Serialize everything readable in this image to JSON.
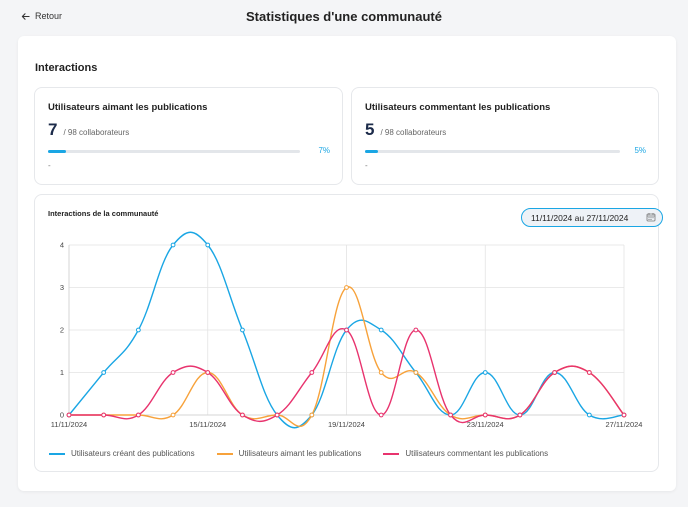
{
  "header": {
    "back_label": "Retour",
    "title": "Statistiques d'une communauté"
  },
  "section": {
    "title": "Interactions"
  },
  "cards": [
    {
      "title": "Utilisateurs aimant les publications",
      "count": "7",
      "total": "/ 98 collaborateurs",
      "percent_label": "7%",
      "percent": 7,
      "note": "-"
    },
    {
      "title": "Utilisateurs commentant les publications",
      "count": "5",
      "total": "/ 98 collaborateurs",
      "percent_label": "5%",
      "percent": 5,
      "note": "-"
    }
  ],
  "chart_card": {
    "title": "Interactions de la communauté",
    "date_range": "11/11/2024 au 27/11/2024"
  },
  "colors": {
    "accent": "#1aa6e4",
    "series_created": "#1aa6e4",
    "series_liked": "#f7a23b",
    "series_commented": "#e8336e"
  },
  "chart_data": {
    "type": "line",
    "title": "Interactions de la communauté",
    "xlabel": "",
    "ylabel": "",
    "x": [
      "11/11/2024",
      "12/11/2024",
      "13/11/2024",
      "14/11/2024",
      "15/11/2024",
      "16/11/2024",
      "17/11/2024",
      "18/11/2024",
      "19/11/2024",
      "20/11/2024",
      "21/11/2024",
      "22/11/2024",
      "23/11/2024",
      "24/11/2024",
      "25/11/2024",
      "26/11/2024",
      "27/11/2024"
    ],
    "x_tick_labels": [
      "11/11/2024",
      "15/11/2024",
      "19/11/2024",
      "23/11/2024",
      "27/11/2024"
    ],
    "x_tick_indices": [
      0,
      4,
      8,
      12,
      16
    ],
    "ylim": [
      0,
      4
    ],
    "y_ticks": [
      0,
      1,
      2,
      3,
      4
    ],
    "grid": true,
    "legend_position": "bottom-left",
    "series": [
      {
        "name": "Utilisateurs créant des publications",
        "color": "#1aa6e4",
        "values": [
          0,
          1,
          2,
          4,
          4,
          2,
          0,
          0,
          2,
          2,
          1,
          0,
          1,
          0,
          1,
          0,
          0
        ]
      },
      {
        "name": "Utilisateurs aimant les publications",
        "color": "#f7a23b",
        "values": [
          0,
          0,
          0,
          0,
          1,
          0,
          0,
          0,
          3,
          1,
          1,
          0,
          0,
          0,
          1,
          1,
          0
        ]
      },
      {
        "name": "Utilisateurs commentant les publications",
        "color": "#e8336e",
        "values": [
          0,
          0,
          0,
          1,
          1,
          0,
          0,
          1,
          2,
          0,
          2,
          0,
          0,
          0,
          1,
          1,
          0
        ]
      }
    ]
  }
}
